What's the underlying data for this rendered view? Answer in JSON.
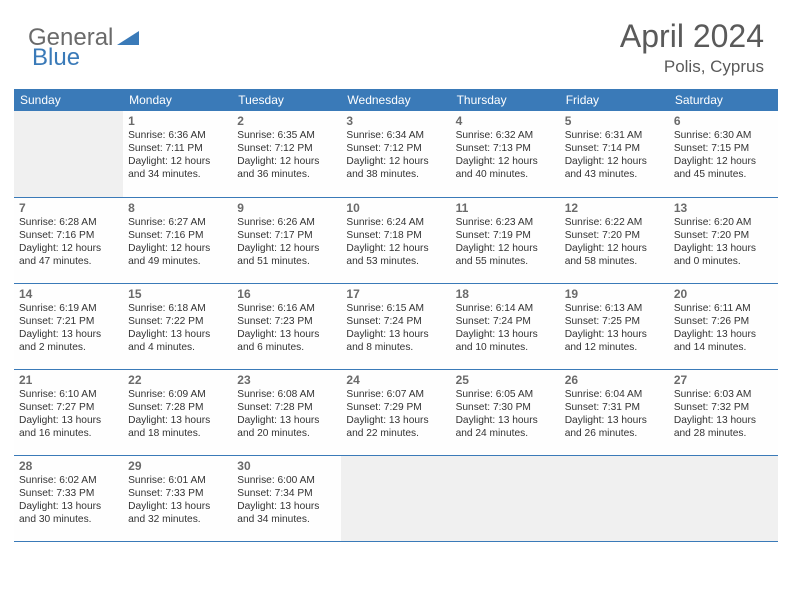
{
  "logo": {
    "part1": "General",
    "part2": "Blue"
  },
  "title": "April 2024",
  "location": "Polis, Cyprus",
  "colors": {
    "header_bg": "#3a7ab8",
    "header_text": "#ffffff",
    "border": "#3a7ab8",
    "daynum": "#6a6a6a",
    "detail": "#333333",
    "logo_gray": "#6a6a6a",
    "logo_blue": "#3a7ab8",
    "empty_cell": "#f0f0f0",
    "background": "#ffffff"
  },
  "weekdays": [
    "Sunday",
    "Monday",
    "Tuesday",
    "Wednesday",
    "Thursday",
    "Friday",
    "Saturday"
  ],
  "weeks": [
    [
      null,
      {
        "d": "1",
        "sr": "Sunrise: 6:36 AM",
        "ss": "Sunset: 7:11 PM",
        "dl1": "Daylight: 12 hours",
        "dl2": "and 34 minutes."
      },
      {
        "d": "2",
        "sr": "Sunrise: 6:35 AM",
        "ss": "Sunset: 7:12 PM",
        "dl1": "Daylight: 12 hours",
        "dl2": "and 36 minutes."
      },
      {
        "d": "3",
        "sr": "Sunrise: 6:34 AM",
        "ss": "Sunset: 7:12 PM",
        "dl1": "Daylight: 12 hours",
        "dl2": "and 38 minutes."
      },
      {
        "d": "4",
        "sr": "Sunrise: 6:32 AM",
        "ss": "Sunset: 7:13 PM",
        "dl1": "Daylight: 12 hours",
        "dl2": "and 40 minutes."
      },
      {
        "d": "5",
        "sr": "Sunrise: 6:31 AM",
        "ss": "Sunset: 7:14 PM",
        "dl1": "Daylight: 12 hours",
        "dl2": "and 43 minutes."
      },
      {
        "d": "6",
        "sr": "Sunrise: 6:30 AM",
        "ss": "Sunset: 7:15 PM",
        "dl1": "Daylight: 12 hours",
        "dl2": "and 45 minutes."
      }
    ],
    [
      {
        "d": "7",
        "sr": "Sunrise: 6:28 AM",
        "ss": "Sunset: 7:16 PM",
        "dl1": "Daylight: 12 hours",
        "dl2": "and 47 minutes."
      },
      {
        "d": "8",
        "sr": "Sunrise: 6:27 AM",
        "ss": "Sunset: 7:16 PM",
        "dl1": "Daylight: 12 hours",
        "dl2": "and 49 minutes."
      },
      {
        "d": "9",
        "sr": "Sunrise: 6:26 AM",
        "ss": "Sunset: 7:17 PM",
        "dl1": "Daylight: 12 hours",
        "dl2": "and 51 minutes."
      },
      {
        "d": "10",
        "sr": "Sunrise: 6:24 AM",
        "ss": "Sunset: 7:18 PM",
        "dl1": "Daylight: 12 hours",
        "dl2": "and 53 minutes."
      },
      {
        "d": "11",
        "sr": "Sunrise: 6:23 AM",
        "ss": "Sunset: 7:19 PM",
        "dl1": "Daylight: 12 hours",
        "dl2": "and 55 minutes."
      },
      {
        "d": "12",
        "sr": "Sunrise: 6:22 AM",
        "ss": "Sunset: 7:20 PM",
        "dl1": "Daylight: 12 hours",
        "dl2": "and 58 minutes."
      },
      {
        "d": "13",
        "sr": "Sunrise: 6:20 AM",
        "ss": "Sunset: 7:20 PM",
        "dl1": "Daylight: 13 hours",
        "dl2": "and 0 minutes."
      }
    ],
    [
      {
        "d": "14",
        "sr": "Sunrise: 6:19 AM",
        "ss": "Sunset: 7:21 PM",
        "dl1": "Daylight: 13 hours",
        "dl2": "and 2 minutes."
      },
      {
        "d": "15",
        "sr": "Sunrise: 6:18 AM",
        "ss": "Sunset: 7:22 PM",
        "dl1": "Daylight: 13 hours",
        "dl2": "and 4 minutes."
      },
      {
        "d": "16",
        "sr": "Sunrise: 6:16 AM",
        "ss": "Sunset: 7:23 PM",
        "dl1": "Daylight: 13 hours",
        "dl2": "and 6 minutes."
      },
      {
        "d": "17",
        "sr": "Sunrise: 6:15 AM",
        "ss": "Sunset: 7:24 PM",
        "dl1": "Daylight: 13 hours",
        "dl2": "and 8 minutes."
      },
      {
        "d": "18",
        "sr": "Sunrise: 6:14 AM",
        "ss": "Sunset: 7:24 PM",
        "dl1": "Daylight: 13 hours",
        "dl2": "and 10 minutes."
      },
      {
        "d": "19",
        "sr": "Sunrise: 6:13 AM",
        "ss": "Sunset: 7:25 PM",
        "dl1": "Daylight: 13 hours",
        "dl2": "and 12 minutes."
      },
      {
        "d": "20",
        "sr": "Sunrise: 6:11 AM",
        "ss": "Sunset: 7:26 PM",
        "dl1": "Daylight: 13 hours",
        "dl2": "and 14 minutes."
      }
    ],
    [
      {
        "d": "21",
        "sr": "Sunrise: 6:10 AM",
        "ss": "Sunset: 7:27 PM",
        "dl1": "Daylight: 13 hours",
        "dl2": "and 16 minutes."
      },
      {
        "d": "22",
        "sr": "Sunrise: 6:09 AM",
        "ss": "Sunset: 7:28 PM",
        "dl1": "Daylight: 13 hours",
        "dl2": "and 18 minutes."
      },
      {
        "d": "23",
        "sr": "Sunrise: 6:08 AM",
        "ss": "Sunset: 7:28 PM",
        "dl1": "Daylight: 13 hours",
        "dl2": "and 20 minutes."
      },
      {
        "d": "24",
        "sr": "Sunrise: 6:07 AM",
        "ss": "Sunset: 7:29 PM",
        "dl1": "Daylight: 13 hours",
        "dl2": "and 22 minutes."
      },
      {
        "d": "25",
        "sr": "Sunrise: 6:05 AM",
        "ss": "Sunset: 7:30 PM",
        "dl1": "Daylight: 13 hours",
        "dl2": "and 24 minutes."
      },
      {
        "d": "26",
        "sr": "Sunrise: 6:04 AM",
        "ss": "Sunset: 7:31 PM",
        "dl1": "Daylight: 13 hours",
        "dl2": "and 26 minutes."
      },
      {
        "d": "27",
        "sr": "Sunrise: 6:03 AM",
        "ss": "Sunset: 7:32 PM",
        "dl1": "Daylight: 13 hours",
        "dl2": "and 28 minutes."
      }
    ],
    [
      {
        "d": "28",
        "sr": "Sunrise: 6:02 AM",
        "ss": "Sunset: 7:33 PM",
        "dl1": "Daylight: 13 hours",
        "dl2": "and 30 minutes."
      },
      {
        "d": "29",
        "sr": "Sunrise: 6:01 AM",
        "ss": "Sunset: 7:33 PM",
        "dl1": "Daylight: 13 hours",
        "dl2": "and 32 minutes."
      },
      {
        "d": "30",
        "sr": "Sunrise: 6:00 AM",
        "ss": "Sunset: 7:34 PM",
        "dl1": "Daylight: 13 hours",
        "dl2": "and 34 minutes."
      },
      null,
      null,
      null,
      null
    ]
  ]
}
